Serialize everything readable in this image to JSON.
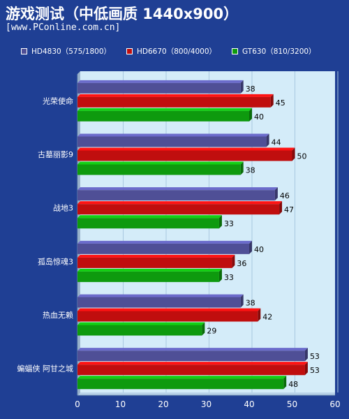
{
  "header": {
    "title": "游戏测试（中低画质 1440x900）",
    "subtitle": "[www.PConline.com.cn]"
  },
  "colors": {
    "background": "#1f3f94",
    "plot_background": "#d4ecf9",
    "gridline": "#a9c8e0"
  },
  "chart_data": {
    "type": "bar",
    "orientation": "horizontal",
    "categories": [
      "光荣使命",
      "古墓丽影9",
      "战地3",
      "孤岛惊魂3",
      "热血无赖",
      "蝙蝠侠 阿甘之城"
    ],
    "series": [
      {
        "name": "HD4830（575/1800）",
        "color": "#4f4f96",
        "values": [
          38,
          44,
          46,
          40,
          38,
          53
        ]
      },
      {
        "name": "HD6670（800/4000）",
        "color": "#c00e0e",
        "values": [
          45,
          50,
          47,
          36,
          42,
          53
        ]
      },
      {
        "name": "GT630（810/3200）",
        "color": "#0e9a0e",
        "values": [
          40,
          38,
          33,
          33,
          29,
          48
        ]
      }
    ],
    "xlim": [
      0,
      60
    ],
    "xticks": [
      0,
      10,
      20,
      30,
      40,
      50,
      60
    ],
    "grid": true,
    "legend_position": "top"
  }
}
